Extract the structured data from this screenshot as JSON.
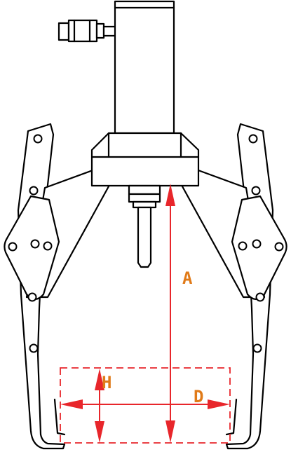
{
  "dimensions": {
    "a": "A",
    "h": "H",
    "d": "D"
  },
  "colors": {
    "line": "#000000",
    "dimension": "#e8262b",
    "label": "#e07a18"
  }
}
